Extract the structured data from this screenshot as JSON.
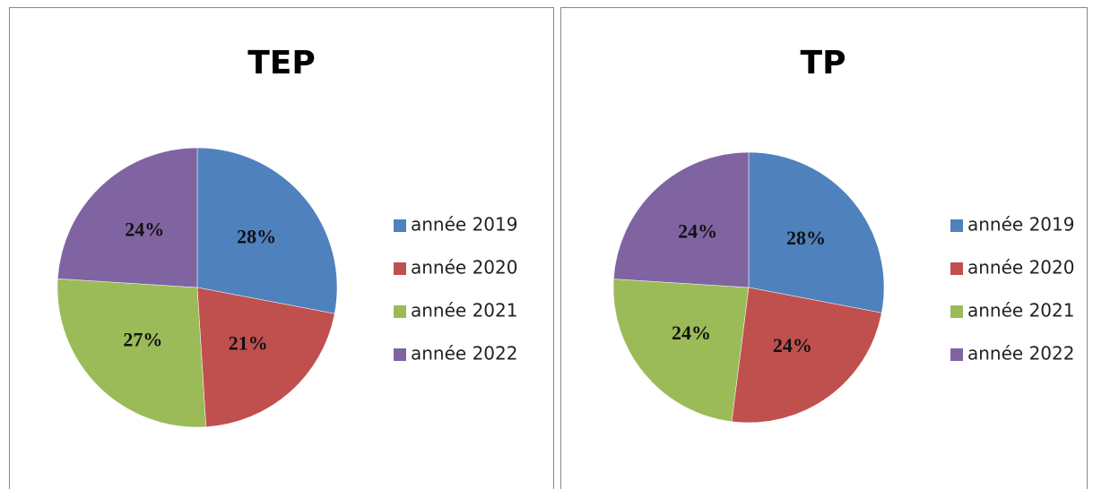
{
  "chart_data": [
    {
      "type": "pie",
      "title": "TEP",
      "categories": [
        "année 2019",
        "année 2020",
        "année 2021",
        "année 2022"
      ],
      "values": [
        28,
        21,
        27,
        24
      ],
      "value_labels": [
        "28%",
        "21%",
        "27%",
        "24%"
      ],
      "colors": [
        "#4f81bd",
        "#c0504d",
        "#9bbb59",
        "#8064a2"
      ],
      "legend": "right"
    },
    {
      "type": "pie",
      "title": "TP",
      "categories": [
        "année 2019",
        "année 2020",
        "année 2021",
        "année 2022"
      ],
      "values": [
        28,
        24,
        24,
        24
      ],
      "value_labels": [
        "28%",
        "24%",
        "24%",
        "24%"
      ],
      "colors": [
        "#4f81bd",
        "#c0504d",
        "#9bbb59",
        "#8064a2"
      ],
      "legend": "right"
    }
  ]
}
